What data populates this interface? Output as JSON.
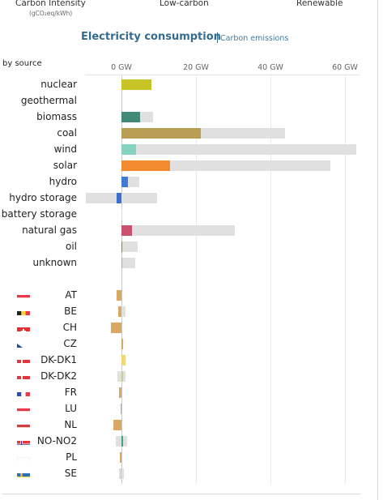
{
  "header": {
    "tabs": [
      {
        "label": "Carbon Intensity",
        "sub": "(gCO₂eq/kWh)"
      },
      {
        "label": "Low-carbon"
      },
      {
        "label": "Renewable"
      }
    ]
  },
  "title": {
    "main": "Electricity consumption",
    "link": "Carbon emissions"
  },
  "by_source_label": "by source",
  "axis": {
    "unit": "GW",
    "ticks": [
      0,
      20,
      40,
      60
    ],
    "tick_labels": [
      "0 GW",
      "20 GW",
      "40 GW",
      "60 GW"
    ]
  },
  "sources": [
    {
      "label": "nuclear",
      "color": "#c7c428"
    },
    {
      "label": "geothermal",
      "color": "#a0522d"
    },
    {
      "label": "biomass",
      "color": "#418a78"
    },
    {
      "label": "coal",
      "color": "#b99f55"
    },
    {
      "label": "wind",
      "color": "#86d3c1"
    },
    {
      "label": "solar",
      "color": "#f28b30"
    },
    {
      "label": "hydro",
      "color": "#3f7bd1"
    },
    {
      "label": "hydro storage",
      "color": "#3a6fcc"
    },
    {
      "label": "battery storage",
      "color": "#a0a0a0"
    },
    {
      "label": "natural gas",
      "color": "#c8526d"
    },
    {
      "label": "oil",
      "color": "#867d66"
    },
    {
      "label": "unknown",
      "color": "#aaaaaa"
    }
  ],
  "exchanges": [
    {
      "code": "AT",
      "flag_icon": "austria-flag-icon"
    },
    {
      "code": "BE",
      "flag_icon": "belgium-flag-icon"
    },
    {
      "code": "CH",
      "flag_icon": "switzerland-flag-icon"
    },
    {
      "code": "CZ",
      "flag_icon": "czech-flag-icon"
    },
    {
      "code": "DK-DK1",
      "flag_icon": "denmark-flag-icon"
    },
    {
      "code": "DK-DK2",
      "flag_icon": "denmark-flag-icon"
    },
    {
      "code": "FR",
      "flag_icon": "france-flag-icon"
    },
    {
      "code": "LU",
      "flag_icon": "luxembourg-flag-icon"
    },
    {
      "code": "NL",
      "flag_icon": "netherlands-flag-icon"
    },
    {
      "code": "NO-NO2",
      "flag_icon": "norway-flag-icon"
    },
    {
      "code": "PL",
      "flag_icon": "poland-flag-icon"
    },
    {
      "code": "SE",
      "flag_icon": "sweden-flag-icon"
    }
  ],
  "chart_data": [
    {
      "type": "bar",
      "orientation": "horizontal",
      "categories": [
        "nuclear",
        "geothermal",
        "biomass",
        "coal",
        "wind",
        "solar",
        "hydro",
        "hydro storage",
        "battery storage",
        "natural gas",
        "oil",
        "unknown"
      ],
      "series": [
        {
          "values": [
            8.0,
            0,
            5.0,
            21.3,
            3.9,
            13.0,
            1.8,
            -1.3,
            0,
            2.9,
            0.1,
            0.1
          ]
        },
        {
          "values": [
            8.0,
            0,
            8.5,
            44.0,
            63.0,
            56.0,
            4.8,
            9.6,
            0.2,
            30.5,
            4.4,
            3.7
          ]
        }
      ],
      "negative_capacity": [
        0,
        0,
        0,
        0,
        0,
        0,
        0,
        -9.5,
        0,
        0,
        0,
        0
      ],
      "xlim": [
        -10,
        64
      ],
      "xunit": "GW"
    },
    {
      "type": "bar",
      "orientation": "horizontal",
      "categories": [
        "AT",
        "BE",
        "CH",
        "CZ",
        "DK-DK1",
        "DK-DK2",
        "FR",
        "LU",
        "NL",
        "NO-NO2",
        "PL",
        "SE"
      ],
      "series": [
        {
          "values": [
            -1.3,
            -0.8,
            -2.8,
            0.1,
            1.0,
            0.1,
            -0.6,
            -0.3,
            -2.1,
            0.5,
            -0.5,
            -0.3
          ]
        }
      ],
      "capacity": [
        [
          -1.3,
          0
        ],
        [
          -0.8,
          1.1
        ],
        [
          -2.8,
          0
        ],
        [
          0,
          0.1
        ],
        [
          0,
          1.1
        ],
        [
          -1.0,
          1.1
        ],
        [
          -0.6,
          0
        ],
        [
          -0.3,
          0
        ],
        [
          -2.1,
          0
        ],
        [
          -1.4,
          1.4
        ],
        [
          -0.5,
          0
        ],
        [
          -0.6,
          0.6
        ]
      ],
      "bar_colors": [
        "#d8a964",
        "#d8a964",
        "#d8a964",
        "#d8a964",
        "#f1d77a",
        "#c2d292",
        "#d8a964",
        "#d8a964",
        "#d8a964",
        "#3fa57a",
        "#d8a964",
        "#c2d292"
      ]
    }
  ]
}
